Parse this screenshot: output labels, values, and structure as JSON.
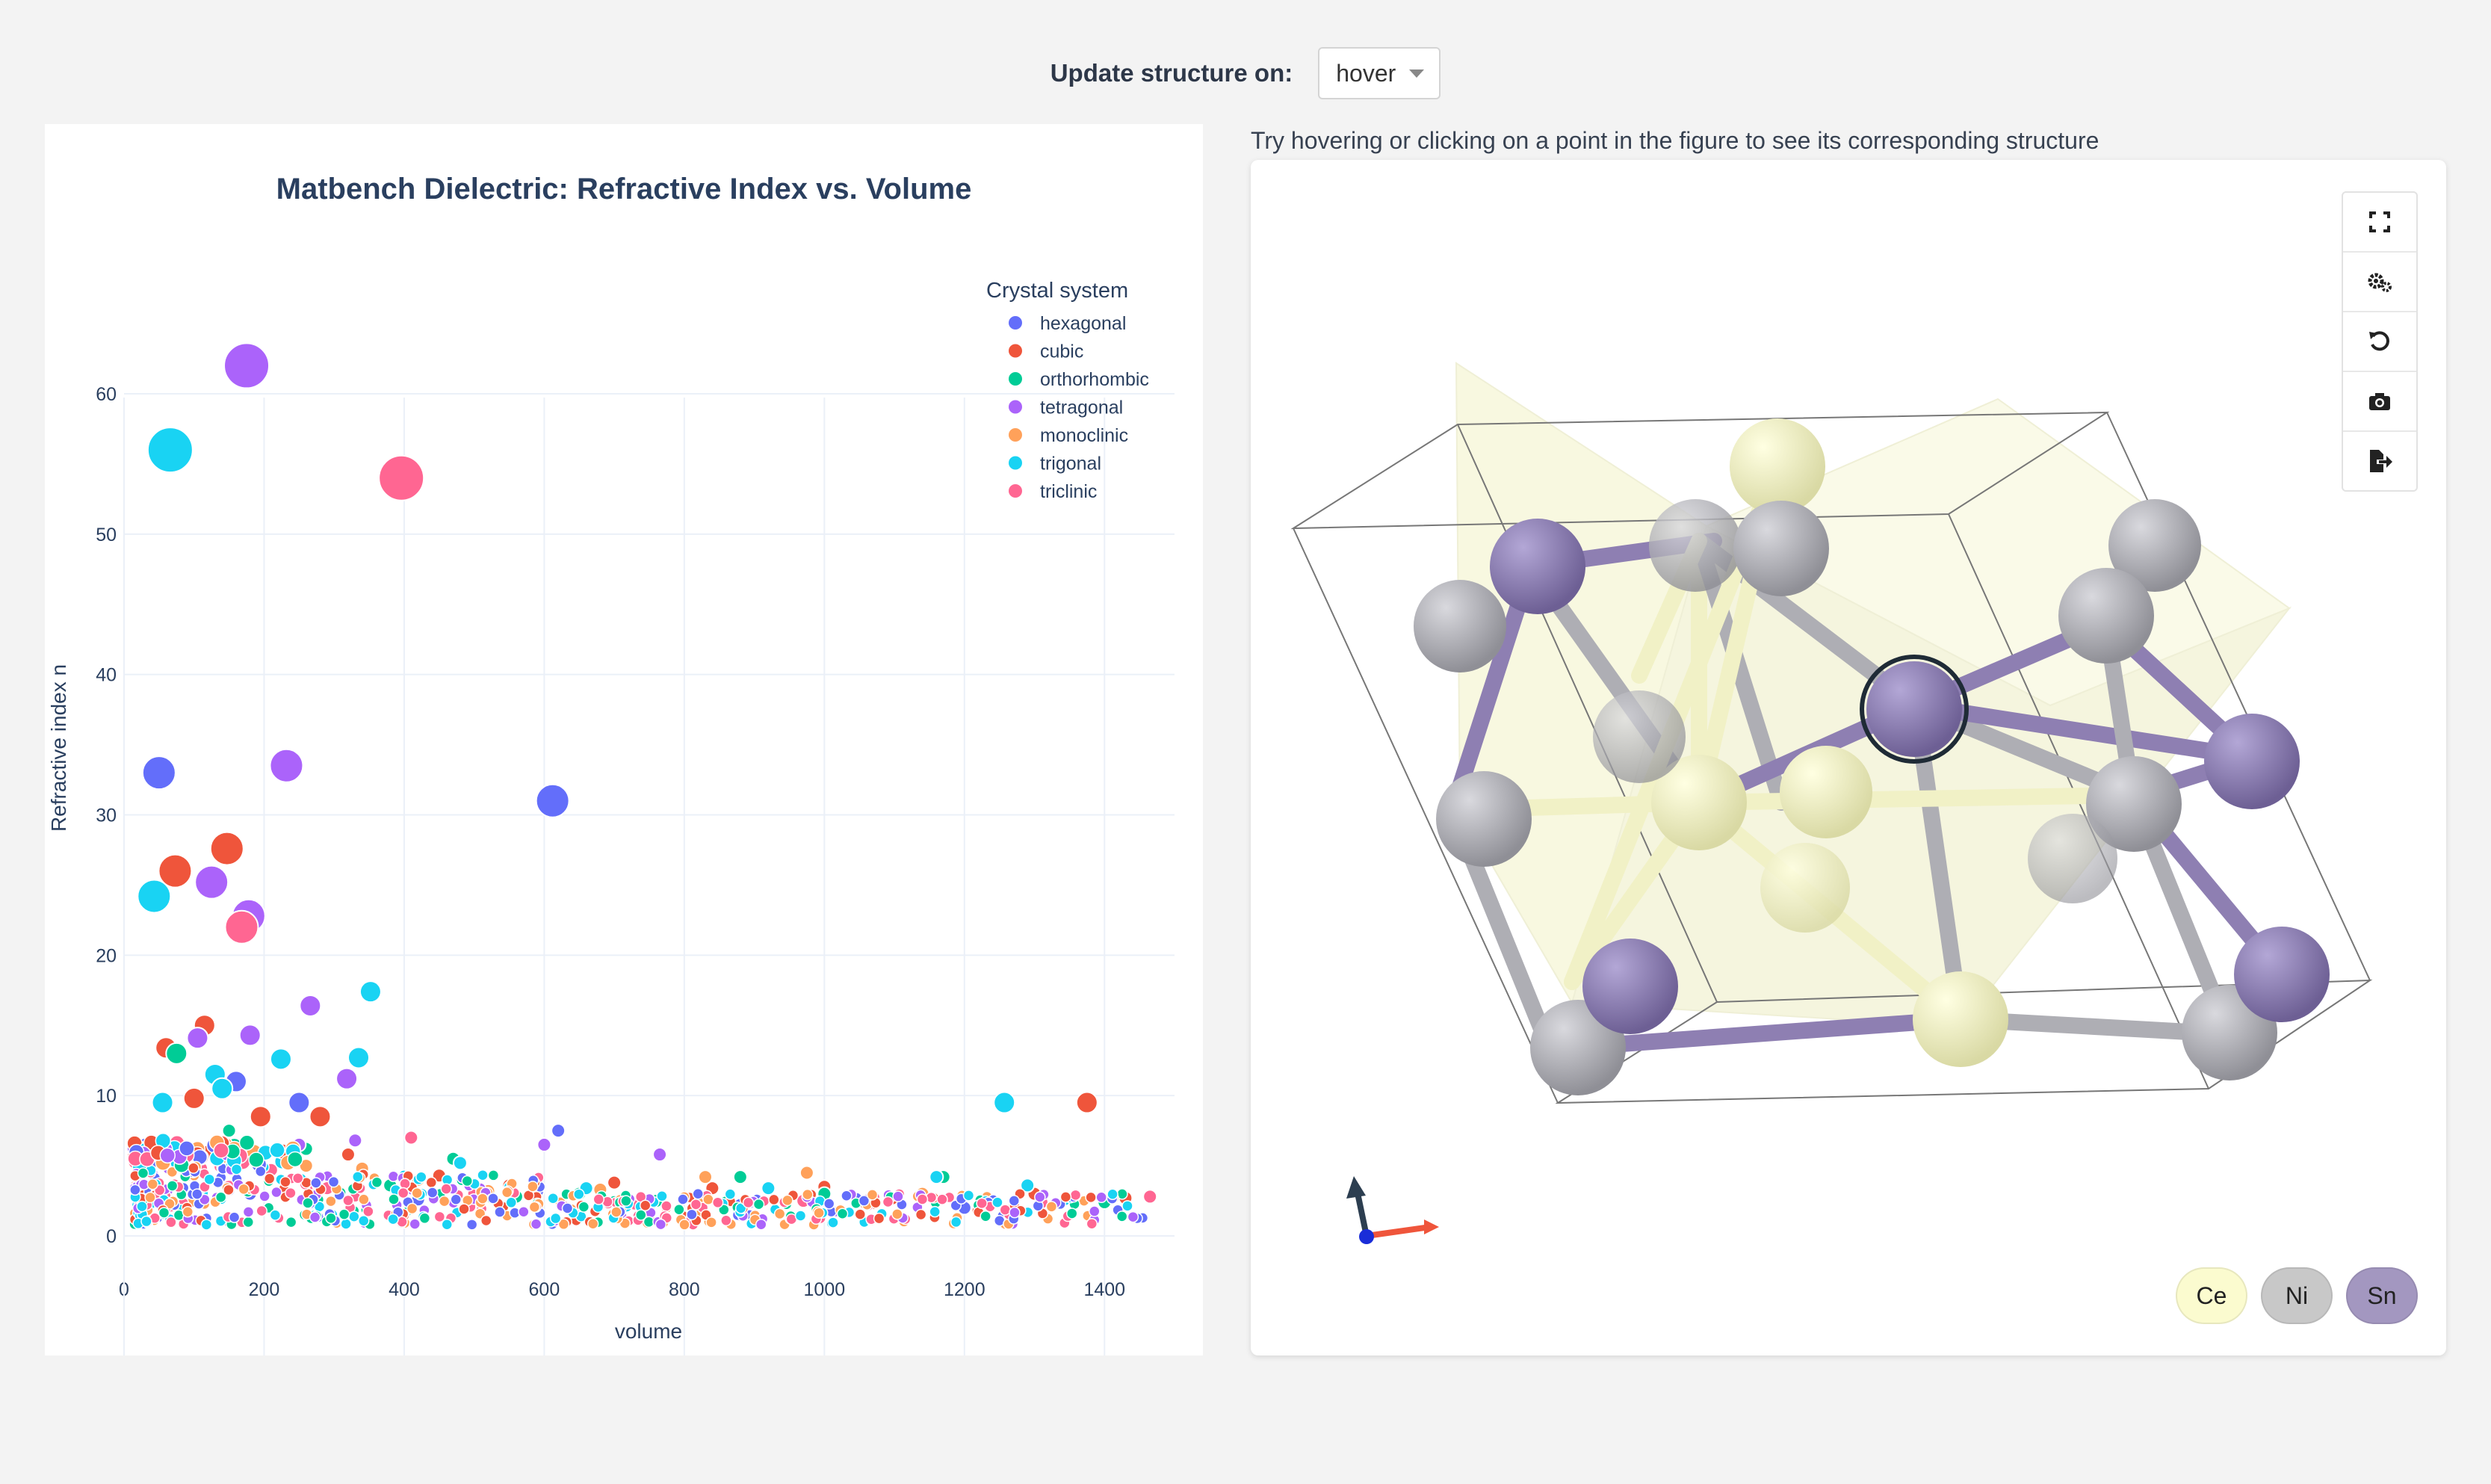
{
  "header": {
    "label": "Update structure on:",
    "select_value": "hover"
  },
  "hint": "Try hovering or clicking on a point in the figure to see its corresponding structure",
  "chart_data": {
    "type": "scatter",
    "title": "Matbench Dielectric: Refractive Index vs. Volume",
    "xlabel": "volume",
    "ylabel": "Refractive index n",
    "xlim": [
      0,
      1500
    ],
    "ylim": [
      -1.5,
      69
    ],
    "xticks": [
      0,
      200,
      400,
      600,
      800,
      1000,
      1200,
      1400
    ],
    "yticks": [
      0,
      10,
      20,
      30,
      40,
      50,
      60
    ],
    "grid": true,
    "legend_title": "Crystal system",
    "legend_position": "top-right",
    "series": [
      {
        "name": "hexagonal",
        "color": "#636efa",
        "points": [
          [
            50,
            33
          ],
          [
            612,
            31
          ],
          [
            250,
            9.5
          ],
          [
            620,
            7.5
          ],
          [
            30,
            6.5
          ],
          [
            160,
            11
          ],
          [
            590,
            3.2
          ],
          [
            420,
            2.6
          ],
          [
            880,
            2.2
          ],
          [
            1200,
            2.0
          ],
          [
            180,
            3.0
          ]
        ]
      },
      {
        "name": "cubic",
        "color": "#ef553b",
        "points": [
          [
            147,
            27.6
          ],
          [
            73,
            26
          ],
          [
            115,
            15
          ],
          [
            60,
            13.4
          ],
          [
            100,
            9.8
          ],
          [
            195,
            8.5
          ],
          [
            280,
            8.5
          ],
          [
            1375,
            9.5
          ],
          [
            120,
            6
          ],
          [
            90,
            4.5
          ],
          [
            320,
            5.8
          ],
          [
            450,
            4.3
          ],
          [
            700,
            3.8
          ],
          [
            1000,
            3.5
          ],
          [
            1300,
            3.0
          ],
          [
            1430,
            2.7
          ],
          [
            550,
            3.6
          ],
          [
            840,
            3.4
          ]
        ]
      },
      {
        "name": "orthorhombic",
        "color": "#00cc96",
        "points": [
          [
            75,
            13
          ],
          [
            150,
            7.5
          ],
          [
            260,
            6.2
          ],
          [
            470,
            5.5
          ],
          [
            880,
            4.2
          ],
          [
            1170,
            4.2
          ],
          [
            560,
            2.8
          ],
          [
            760,
            2.5
          ],
          [
            1000,
            3.0
          ],
          [
            1400,
            2.4
          ],
          [
            380,
            3.6
          ],
          [
            650,
            3.0
          ]
        ]
      },
      {
        "name": "tetragonal",
        "color": "#ab63fa",
        "points": [
          [
            175,
            62
          ],
          [
            232,
            33.5
          ],
          [
            125,
            25.2
          ],
          [
            178,
            22.8
          ],
          [
            266,
            16.4
          ],
          [
            180,
            14.3
          ],
          [
            105,
            14.1
          ],
          [
            318,
            11.2
          ],
          [
            250,
            6.5
          ],
          [
            600,
            6.5
          ],
          [
            765,
            5.8
          ],
          [
            1060,
            2.5
          ],
          [
            330,
            6.8
          ]
        ]
      },
      {
        "name": "monoclinic",
        "color": "#ffa15a",
        "points": [
          [
            260,
            5.0
          ],
          [
            420,
            4.0
          ],
          [
            520,
            3.2
          ],
          [
            830,
            4.2
          ],
          [
            975,
            4.5
          ],
          [
            1140,
            3.0
          ],
          [
            680,
            3.3
          ],
          [
            150,
            5.4
          ],
          [
            340,
            4.8
          ]
        ]
      },
      {
        "name": "trigonal",
        "color": "#19d3f3",
        "points": [
          [
            66,
            56
          ],
          [
            43,
            24.2
          ],
          [
            352,
            17.4
          ],
          [
            224,
            12.6
          ],
          [
            335,
            12.7
          ],
          [
            55,
            9.5
          ],
          [
            130,
            11.5
          ],
          [
            1257,
            9.5
          ],
          [
            140,
            10.5
          ],
          [
            480,
            5.2
          ],
          [
            920,
            3.4
          ],
          [
            1160,
            4.2
          ],
          [
            1240,
            2.5
          ],
          [
            660,
            3.4
          ],
          [
            1290,
            3.6
          ]
        ]
      },
      {
        "name": "triclinic",
        "color": "#ff6692",
        "points": [
          [
            396,
            54
          ],
          [
            168,
            22
          ],
          [
            410,
            7.0
          ],
          [
            210,
            4.7
          ],
          [
            290,
            3.4
          ],
          [
            500,
            3.0
          ],
          [
            750,
            2.2
          ],
          [
            970,
            2.5
          ],
          [
            1310,
            2.4
          ],
          [
            1465,
            2.8
          ],
          [
            150,
            3.5
          ],
          [
            110,
            4.8
          ]
        ]
      }
    ]
  },
  "structure": {
    "toolbar": [
      {
        "label": "Fullscreen",
        "icon": "fullscreen-icon"
      },
      {
        "label": "Settings",
        "icon": "gears-icon"
      },
      {
        "label": "Reset view",
        "icon": "undo-icon"
      },
      {
        "label": "Screenshot",
        "icon": "camera-icon"
      },
      {
        "label": "Export",
        "icon": "export-file-icon"
      }
    ],
    "elements": [
      {
        "symbol": "Ce",
        "color": "#fbfbcf"
      },
      {
        "symbol": "Ni",
        "color": "#c8c8c8"
      },
      {
        "symbol": "Sn",
        "color": "#a397c0"
      }
    ],
    "atom_colors": {
      "Ce": "#f6f6c4",
      "Ni": "#aeaeb4",
      "Sn": "#8e7fb2",
      "Ce_poly": "#f1f1c6"
    },
    "axes_colors": {
      "x": "#ef553b",
      "y": "#2c3e50",
      "z": "#1a2dd8"
    }
  }
}
